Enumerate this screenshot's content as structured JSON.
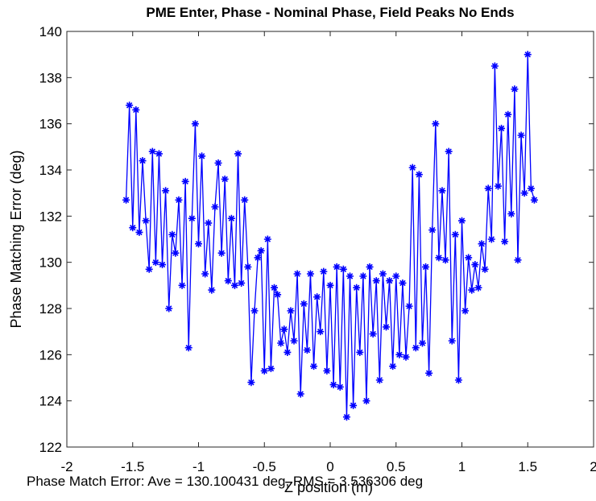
{
  "chart_data": {
    "type": "line",
    "title": "PME Enter, Phase - Nominal Phase, Field Peaks No Ends",
    "xlabel": "Z position (m)",
    "ylabel": "Phase Matching Error (deg)",
    "annotation": "Phase Match Error: Ave = 130.100431 deg, RMS = 3.536306 deg",
    "xlim": [
      -2,
      2
    ],
    "xticks": [
      -2,
      -1.5,
      -1,
      -0.5,
      0,
      0.5,
      1,
      1.5,
      2
    ],
    "ylim": [
      122,
      140
    ],
    "yticks": [
      122,
      124,
      126,
      128,
      130,
      132,
      134,
      136,
      138,
      140
    ],
    "grid": false,
    "marker": "asterisk",
    "series": [
      {
        "color": "#0000ff",
        "x": [
          -1.55,
          -1.525,
          -1.5,
          -1.475,
          -1.45,
          -1.425,
          -1.4,
          -1.375,
          -1.35,
          -1.325,
          -1.3,
          -1.275,
          -1.25,
          -1.225,
          -1.2,
          -1.175,
          -1.15,
          -1.125,
          -1.1,
          -1.075,
          -1.05,
          -1.025,
          -1.0,
          -0.975,
          -0.95,
          -0.925,
          -0.9,
          -0.875,
          -0.85,
          -0.825,
          -0.8,
          -0.775,
          -0.75,
          -0.725,
          -0.7,
          -0.675,
          -0.65,
          -0.625,
          -0.6,
          -0.575,
          -0.55,
          -0.525,
          -0.5,
          -0.475,
          -0.45,
          -0.425,
          -0.4,
          -0.375,
          -0.35,
          -0.325,
          -0.3,
          -0.275,
          -0.25,
          -0.225,
          -0.2,
          -0.175,
          -0.15,
          -0.125,
          -0.1,
          -0.075,
          -0.05,
          -0.025,
          0.0,
          0.025,
          0.05,
          0.075,
          0.1,
          0.125,
          0.15,
          0.175,
          0.2,
          0.225,
          0.25,
          0.275,
          0.3,
          0.325,
          0.35,
          0.375,
          0.4,
          0.425,
          0.45,
          0.475,
          0.5,
          0.525,
          0.55,
          0.575,
          0.6,
          0.625,
          0.65,
          0.675,
          0.7,
          0.725,
          0.75,
          0.775,
          0.8,
          0.825,
          0.85,
          0.875,
          0.9,
          0.925,
          0.95,
          0.975,
          1.0,
          1.025,
          1.05,
          1.075,
          1.1,
          1.125,
          1.15,
          1.175,
          1.2,
          1.225,
          1.25,
          1.275,
          1.3,
          1.325,
          1.35,
          1.375,
          1.4,
          1.425,
          1.45,
          1.475,
          1.5,
          1.525,
          1.55
        ],
        "values": [
          132.7,
          136.8,
          131.5,
          136.6,
          131.3,
          134.4,
          131.8,
          129.7,
          134.8,
          130.0,
          134.7,
          129.9,
          133.1,
          128.0,
          131.2,
          130.4,
          132.7,
          129.0,
          133.5,
          126.3,
          131.9,
          136.0,
          130.8,
          134.6,
          129.5,
          131.7,
          128.8,
          132.4,
          134.3,
          130.4,
          133.6,
          129.2,
          131.9,
          129.0,
          134.7,
          129.1,
          132.7,
          129.8,
          124.8,
          127.9,
          130.2,
          130.5,
          125.3,
          131.0,
          125.4,
          128.9,
          128.6,
          126.5,
          127.1,
          126.1,
          127.9,
          126.6,
          129.5,
          124.3,
          128.2,
          126.2,
          129.5,
          125.5,
          128.5,
          127.0,
          129.6,
          125.3,
          129.0,
          124.7,
          129.8,
          124.6,
          129.7,
          123.3,
          129.4,
          123.8,
          128.9,
          126.1,
          129.4,
          124.0,
          129.8,
          126.9,
          129.2,
          124.9,
          129.5,
          127.2,
          129.2,
          125.5,
          129.4,
          126.0,
          129.1,
          125.9,
          128.1,
          134.1,
          126.3,
          133.8,
          126.5,
          129.8,
          125.2,
          131.4,
          136.0,
          130.2,
          133.1,
          130.1,
          134.8,
          126.6,
          131.2,
          124.9,
          131.8,
          127.9,
          130.2,
          128.8,
          129.9,
          128.9,
          130.8,
          129.7,
          133.2,
          131.0,
          138.5,
          133.3,
          135.8,
          130.9,
          136.4,
          132.1,
          137.5,
          130.1,
          135.5,
          133.0,
          139.0,
          133.2,
          132.7
        ]
      }
    ]
  }
}
